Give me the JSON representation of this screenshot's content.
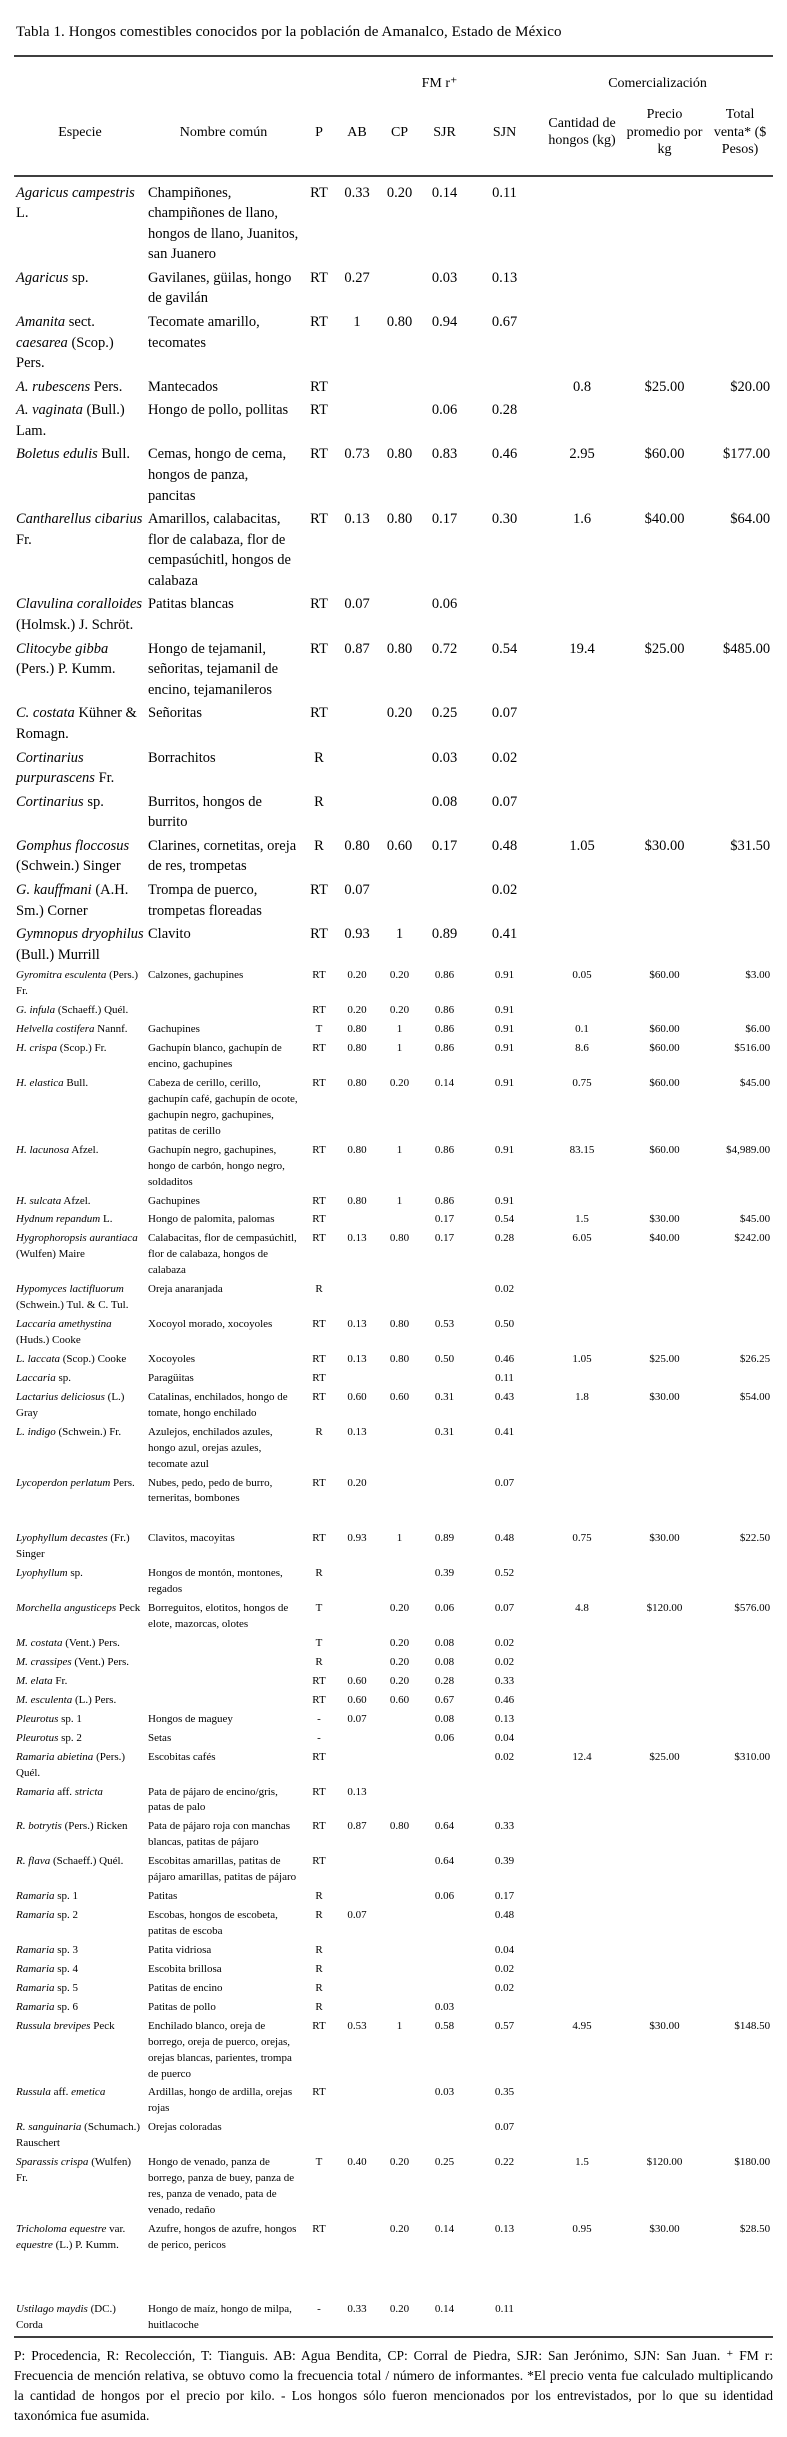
{
  "colors": {
    "text": "#000000",
    "rule": "#3f3f3f",
    "background": "#ffffff"
  },
  "title": "Tabla 1. Hongos comestibles conocidos por la población de Amanalco, Estado de México",
  "table": {
    "group_headers": {
      "fm": "FM r⁺",
      "comercializacion": "Comercialización"
    },
    "columns": [
      "Especie",
      "Nombre común",
      "P",
      "AB",
      "CP",
      "SJR",
      "SJN",
      "Cantidad de hongos (kg)",
      "Precio promedio por kg",
      "Total venta* ($ Pesos)"
    ],
    "rows": [
      {
        "section": "large",
        "especie": "«Agaricus campestris» L.",
        "nombre": "Champiñones, champiñones de llano, hongos de llano, Juanitos, san Juanero",
        "p": "RT",
        "ab": "0.33",
        "cp": "0.20",
        "sjr": "0.14",
        "sjn": "0.11",
        "cantidad": "",
        "precio": "",
        "total": ""
      },
      {
        "section": "large",
        "especie": "«Agaricus» sp.",
        "nombre": "Gavilanes, güilas, hongo de gavilán",
        "p": "RT",
        "ab": "0.27",
        "cp": "",
        "sjr": "0.03",
        "sjn": "0.13",
        "cantidad": "",
        "precio": "",
        "total": ""
      },
      {
        "section": "large",
        "especie": "«Amanita» sect. «caesarea» (Scop.) Pers.",
        "nombre": "Tecomate amarillo, tecomates",
        "p": "RT",
        "ab": "1",
        "cp": "0.80",
        "sjr": "0.94",
        "sjn": "0.67",
        "cantidad": "",
        "precio": "",
        "total": ""
      },
      {
        "section": "large",
        "especie": "«A. rubescens» Pers.",
        "nombre": "Mantecados",
        "p": "RT",
        "ab": "",
        "cp": "",
        "sjr": "",
        "sjn": "",
        "cantidad": "0.8",
        "precio": "$25.00",
        "total": "$20.00"
      },
      {
        "section": "large",
        "especie": "«A. vaginata» (Bull.) Lam.",
        "nombre": "Hongo de pollo, pollitas",
        "p": "RT",
        "ab": "",
        "cp": "",
        "sjr": "0.06",
        "sjn": "0.28",
        "cantidad": "",
        "precio": "",
        "total": ""
      },
      {
        "section": "large",
        "especie": "«Boletus edulis» Bull.",
        "nombre": "Cemas, hongo de cema, hongos de panza, pancitas",
        "p": "RT",
        "ab": "0.73",
        "cp": "0.80",
        "sjr": "0.83",
        "sjn": "0.46",
        "cantidad": "2.95",
        "precio": "$60.00",
        "total": "$177.00"
      },
      {
        "section": "large",
        "especie": "«Cantharellus cibarius» Fr.",
        "nombre": "Amarillos, calabacitas, flor de calabaza, flor de cempasúchitl, hongos de calabaza",
        "p": "RT",
        "ab": "0.13",
        "cp": "0.80",
        "sjr": "0.17",
        "sjn": "0.30",
        "cantidad": "1.6",
        "precio": "$40.00",
        "total": "$64.00"
      },
      {
        "section": "large",
        "especie": "«Clavulina coralloides» (Holmsk.) J. Schröt.",
        "nombre": "Patitas blancas",
        "p": "RT",
        "ab": "0.07",
        "cp": "",
        "sjr": "0.06",
        "sjn": "",
        "cantidad": "",
        "precio": "",
        "total": ""
      },
      {
        "section": "large",
        "especie": "«Clitocybe gibba» (Pers.) P. Kumm.",
        "nombre": "Hongo de tejamanil, señoritas, tejamanil de encino, tejamanileros",
        "p": "RT",
        "ab": "0.87",
        "cp": "0.80",
        "sjr": "0.72",
        "sjn": "0.54",
        "cantidad": "19.4",
        "precio": "$25.00",
        "total": "$485.00"
      },
      {
        "section": "large",
        "especie": "«C. costata» Kühner & Romagn.",
        "nombre": "Señoritas",
        "p": "RT",
        "ab": "",
        "cp": "0.20",
        "sjr": "0.25",
        "sjn": "0.07",
        "cantidad": "",
        "precio": "",
        "total": ""
      },
      {
        "section": "large",
        "especie": "«Cortinarius purpurascens» Fr.",
        "nombre": "Borrachitos",
        "p": "R",
        "ab": "",
        "cp": "",
        "sjr": "0.03",
        "sjn": "0.02",
        "cantidad": "",
        "precio": "",
        "total": ""
      },
      {
        "section": "large",
        "especie": "«Cortinarius» sp.",
        "nombre": "Burritos, hongos de burrito",
        "p": "R",
        "ab": "",
        "cp": "",
        "sjr": "0.08",
        "sjn": "0.07",
        "cantidad": "",
        "precio": "",
        "total": ""
      },
      {
        "section": "large",
        "especie": "«Gomphus floccosus» (Schwein.) Singer",
        "nombre": "Clarines, cornetitas, oreja de res, trompetas",
        "p": "R",
        "ab": "0.80",
        "cp": "0.60",
        "sjr": "0.17",
        "sjn": "0.48",
        "cantidad": "1.05",
        "precio": "$30.00",
        "total": "$31.50"
      },
      {
        "section": "large",
        "especie": "«G. kauffmani» (A.H. Sm.) Corner",
        "nombre": "Trompa de puerco, trompetas floreadas",
        "p": "RT",
        "ab": "0.07",
        "cp": "",
        "sjr": "",
        "sjn": "0.02",
        "cantidad": "",
        "precio": "",
        "total": ""
      },
      {
        "section": "large",
        "especie": "«Gymnopus dryophilus» (Bull.) Murrill",
        "nombre": "Clavito",
        "p": "RT",
        "ab": "0.93",
        "cp": "1",
        "sjr": "0.89",
        "sjn": "0.41",
        "cantidad": "",
        "precio": "",
        "total": ""
      },
      {
        "section": "small",
        "especie": "«Gyromitra esculenta» (Pers.) Fr.",
        "nombre": "Calzones, gachupines",
        "p": "RT",
        "ab": "0.20",
        "cp": "0.20",
        "sjr": "0.86",
        "sjn": "0.91",
        "cantidad": "0.05",
        "precio": "$60.00",
        "total": "$3.00"
      },
      {
        "section": "small",
        "especie": "«G. infula» (Schaeff.) Quél.",
        "nombre": "",
        "p": "RT",
        "ab": "0.20",
        "cp": "0.20",
        "sjr": "0.86",
        "sjn": "0.91",
        "cantidad": "",
        "precio": "",
        "total": ""
      },
      {
        "section": "small",
        "especie": "«Helvella costifera» Nannf.",
        "nombre": "Gachupines",
        "p": "T",
        "ab": "0.80",
        "cp": "1",
        "sjr": "0.86",
        "sjn": "0.91",
        "cantidad": "0.1",
        "precio": "$60.00",
        "total": "$6.00"
      },
      {
        "section": "small",
        "especie": "«H. crispa» (Scop.) Fr.",
        "nombre": "Gachupín blanco, gachupín de encino, gachupines",
        "p": "RT",
        "ab": "0.80",
        "cp": "1",
        "sjr": "0.86",
        "sjn": "0.91",
        "cantidad": "8.6",
        "precio": "$60.00",
        "total": "$516.00"
      },
      {
        "section": "small",
        "especie": "«H. elastica» Bull.",
        "nombre": "Cabeza de cerillo, cerillo, gachupín café, gachupín de ocote, gachupín negro, gachupines, patitas de cerillo",
        "p": "RT",
        "ab": "0.80",
        "cp": "0.20",
        "sjr": "0.14",
        "sjn": "0.91",
        "cantidad": "0.75",
        "precio": "$60.00",
        "total": "$45.00"
      },
      {
        "section": "small",
        "especie": "«H. lacunosa» Afzel.",
        "nombre": "Gachupín negro, gachupines, hongo de carbón, hongo negro, soldaditos",
        "p": "RT",
        "ab": "0.80",
        "cp": "1",
        "sjr": "0.86",
        "sjn": "0.91",
        "cantidad": "83.15",
        "precio": "$60.00",
        "total": "$4,989.00"
      },
      {
        "section": "small",
        "especie": "«H. sulcata» Afzel.",
        "nombre": "Gachupines",
        "p": "RT",
        "ab": "0.80",
        "cp": "1",
        "sjr": "0.86",
        "sjn": "0.91",
        "cantidad": "",
        "precio": "",
        "total": ""
      },
      {
        "section": "small",
        "especie": "«Hydnum repandum» L.",
        "nombre": "Hongo de palomita, palomas",
        "p": "RT",
        "ab": "",
        "cp": "",
        "sjr": "0.17",
        "sjn": "0.54",
        "cantidad": "1.5",
        "precio": "$30.00",
        "total": "$45.00"
      },
      {
        "section": "small",
        "especie": "«Hygrophoropsis aurantiaca» (Wulfen) Maire",
        "nombre": "Calabacitas, flor de cempasúchitl, flor de calabaza, hongos de calabaza",
        "p": "RT",
        "ab": "0.13",
        "cp": "0.80",
        "sjr": "0.17",
        "sjn": "0.28",
        "cantidad": "6.05",
        "precio": "$40.00",
        "total": "$242.00"
      },
      {
        "section": "small",
        "especie": "«Hypomyces lactifluorum» (Schwein.) Tul. & C. Tul.",
        "nombre": "Oreja anaranjada",
        "p": "R",
        "ab": "",
        "cp": "",
        "sjr": "",
        "sjn": "0.02",
        "cantidad": "",
        "precio": "",
        "total": ""
      },
      {
        "section": "small",
        "especie": "«Laccaria amethystina» (Huds.) Cooke",
        "nombre": "Xocoyol morado, xocoyoles",
        "p": "RT",
        "ab": "0.13",
        "cp": "0.80",
        "sjr": "0.53",
        "sjn": "0.50",
        "cantidad": "",
        "precio": "",
        "total": ""
      },
      {
        "section": "small",
        "especie": "«L. laccata» (Scop.) Cooke",
        "nombre": "Xocoyoles",
        "p": "RT",
        "ab": "0.13",
        "cp": "0.80",
        "sjr": "0.50",
        "sjn": "0.46",
        "cantidad": "1.05",
        "precio": "$25.00",
        "total": "$26.25"
      },
      {
        "section": "small",
        "especie": "«Laccaria» sp.",
        "nombre": "Paragüitas",
        "p": "RT",
        "ab": "",
        "cp": "",
        "sjr": "",
        "sjn": "0.11",
        "cantidad": "",
        "precio": "",
        "total": ""
      },
      {
        "section": "small",
        "especie": "«Lactarius deliciosus» (L.) Gray",
        "nombre": "Catalinas, enchilados, hongo de tomate, hongo enchilado",
        "p": "RT",
        "ab": "0.60",
        "cp": "0.60",
        "sjr": "0.31",
        "sjn": "0.43",
        "cantidad": "1.8",
        "precio": "$30.00",
        "total": "$54.00"
      },
      {
        "section": "small",
        "especie": "«L. indigo» (Schwein.) Fr.",
        "nombre": "Azulejos, enchilados azules, hongo azul, orejas azules, tecomate azul",
        "p": "R",
        "ab": "0.13",
        "cp": "",
        "sjr": "0.31",
        "sjn": "0.41",
        "cantidad": "",
        "precio": "",
        "total": ""
      },
      {
        "section": "small",
        "especie": "«Lycoperdon perlatum» Pers.",
        "nombre": "Nubes, pedo, pedo de burro, terneritas, bombones",
        "p": "RT",
        "ab": "0.20",
        "cp": "",
        "sjr": "",
        "sjn": "0.07",
        "cantidad": "",
        "precio": "",
        "total": ""
      },
      {
        "section": "small",
        "gap": "sm",
        "especie": "«Lyophyllum decastes» (Fr.) Singer",
        "nombre": "Clavitos, macoyitas",
        "p": "RT",
        "ab": "0.93",
        "cp": "1",
        "sjr": "0.89",
        "sjn": "0.48",
        "cantidad": "0.75",
        "precio": "$30.00",
        "total": "$22.50"
      },
      {
        "section": "small",
        "especie": "«Lyophyllum» sp.",
        "nombre": "Hongos de montón, montones, regados",
        "p": "R",
        "ab": "",
        "cp": "",
        "sjr": "0.39",
        "sjn": "0.52",
        "cantidad": "",
        "precio": "",
        "total": ""
      },
      {
        "section": "small",
        "especie": "«Morchella angusticeps» Peck",
        "nombre": "Borreguitos, elotitos, hongos de elote, mazorcas, olotes",
        "p": "T",
        "ab": "",
        "cp": "0.20",
        "sjr": "0.06",
        "sjn": "0.07",
        "cantidad": "4.8",
        "precio": "$120.00",
        "total": "$576.00"
      },
      {
        "section": "small",
        "especie": "«M. costata» (Vent.) Pers.",
        "nombre": "",
        "p": "T",
        "ab": "",
        "cp": "0.20",
        "sjr": "0.08",
        "sjn": "0.02",
        "cantidad": "",
        "precio": "",
        "total": ""
      },
      {
        "section": "small",
        "especie": "«M. crassipes» (Vent.) Pers.",
        "nombre": "",
        "p": "R",
        "ab": "",
        "cp": "0.20",
        "sjr": "0.08",
        "sjn": "0.02",
        "cantidad": "",
        "precio": "",
        "total": ""
      },
      {
        "section": "small",
        "especie": "«M. elata» Fr.",
        "nombre": "",
        "p": "RT",
        "ab": "0.60",
        "cp": "0.20",
        "sjr": "0.28",
        "sjn": "0.33",
        "cantidad": "",
        "precio": "",
        "total": ""
      },
      {
        "section": "small",
        "especie": "«M. esculenta» (L.) Pers.",
        "nombre": "",
        "p": "RT",
        "ab": "0.60",
        "cp": "0.60",
        "sjr": "0.67",
        "sjn": "0.46",
        "cantidad": "",
        "precio": "",
        "total": ""
      },
      {
        "section": "small",
        "especie": "«Pleurotus» sp. 1",
        "nombre": "Hongos de maguey",
        "p": "-",
        "ab": "0.07",
        "cp": "",
        "sjr": "0.08",
        "sjn": "0.13",
        "cantidad": "",
        "precio": "",
        "total": ""
      },
      {
        "section": "small",
        "especie": "«Pleurotus» sp. 2",
        "nombre": "Setas",
        "p": "-",
        "ab": "",
        "cp": "",
        "sjr": "0.06",
        "sjn": "0.04",
        "cantidad": "",
        "precio": "",
        "total": ""
      },
      {
        "section": "small",
        "especie": "«Ramaria abietina» (Pers.) Quél.",
        "nombre": "Escobitas cafés",
        "p": "RT",
        "ab": "",
        "cp": "",
        "sjr": "",
        "sjn": "0.02",
        "cantidad": "12.4",
        "precio": "$25.00",
        "total": "$310.00"
      },
      {
        "section": "small",
        "especie": "«Ramaria» aff. «stricta»",
        "nombre": "Pata de pájaro de encino/gris, patas de palo",
        "p": "RT",
        "ab": "0.13",
        "cp": "",
        "sjr": "",
        "sjn": "",
        "cantidad": "",
        "precio": "",
        "total": ""
      },
      {
        "section": "small",
        "especie": "«R. botrytis» (Pers.) Ricken",
        "nombre": "Pata de pájaro roja con manchas blancas, patitas de pájaro",
        "p": "RT",
        "ab": "0.87",
        "cp": "0.80",
        "sjr": "0.64",
        "sjn": "0.33",
        "cantidad": "",
        "precio": "",
        "total": ""
      },
      {
        "section": "small",
        "especie": "«R. flava» (Schaeff.) Quél.",
        "nombre": "Escobitas amarillas, patitas de pájaro amarillas, patitas de pájaro",
        "p": "RT",
        "ab": "",
        "cp": "",
        "sjr": "0.64",
        "sjn": "0.39",
        "cantidad": "",
        "precio": "",
        "total": ""
      },
      {
        "section": "small",
        "especie": "«Ramaria» sp. 1",
        "nombre": "Patitas",
        "p": "R",
        "ab": "",
        "cp": "",
        "sjr": "0.06",
        "sjn": "0.17",
        "cantidad": "",
        "precio": "",
        "total": ""
      },
      {
        "section": "small",
        "especie": "«Ramaria» sp. 2",
        "nombre": "Escobas, hongos de escobeta, patitas de escoba",
        "p": "R",
        "ab": "0.07",
        "cp": "",
        "sjr": "",
        "sjn": "0.48",
        "cantidad": "",
        "precio": "",
        "total": ""
      },
      {
        "section": "small",
        "especie": "«Ramaria» sp. 3",
        "nombre": "Patita vidriosa",
        "p": "R",
        "ab": "",
        "cp": "",
        "sjr": "",
        "sjn": "0.04",
        "cantidad": "",
        "precio": "",
        "total": ""
      },
      {
        "section": "small",
        "especie": "«Ramaria» sp. 4",
        "nombre": "Escobita brillosa",
        "p": "R",
        "ab": "",
        "cp": "",
        "sjr": "",
        "sjn": "0.02",
        "cantidad": "",
        "precio": "",
        "total": ""
      },
      {
        "section": "small",
        "especie": "«Ramaria» sp. 5",
        "nombre": "Patitas de encino",
        "p": "R",
        "ab": "",
        "cp": "",
        "sjr": "",
        "sjn": "0.02",
        "cantidad": "",
        "precio": "",
        "total": ""
      },
      {
        "section": "small",
        "especie": "«Ramaria» sp. 6",
        "nombre": "Patitas de pollo",
        "p": "R",
        "ab": "",
        "cp": "",
        "sjr": "0.03",
        "sjn": "",
        "cantidad": "",
        "precio": "",
        "total": ""
      },
      {
        "section": "small",
        "especie": "«Russula brevipes» Peck",
        "nombre": "Enchilado blanco, oreja de borrego, oreja de puerco, orejas, orejas blancas, parientes, trompa de puerco",
        "p": "RT",
        "ab": "0.53",
        "cp": "1",
        "sjr": "0.58",
        "sjn": "0.57",
        "cantidad": "4.95",
        "precio": "$30.00",
        "total": "$148.50"
      },
      {
        "section": "small",
        "especie": "«Russula» aff. «emetica»",
        "nombre": "Ardillas, hongo de ardilla, orejas rojas",
        "p": "RT",
        "ab": "",
        "cp": "",
        "sjr": "0.03",
        "sjn": "0.35",
        "cantidad": "",
        "precio": "",
        "total": ""
      },
      {
        "section": "small",
        "especie": "«R. sanguinaria» (Schumach.) Rauschert",
        "nombre": "Orejas coloradas",
        "p": "",
        "ab": "",
        "cp": "",
        "sjr": "",
        "sjn": "0.07",
        "cantidad": "",
        "precio": "",
        "total": ""
      },
      {
        "section": "small",
        "especie": "«Sparassis crispa» (Wulfen) Fr.",
        "nombre": "Hongo de venado, panza de borrego, panza de buey, panza de res, panza de venado, pata de venado, redaño",
        "p": "T",
        "ab": "0.40",
        "cp": "0.20",
        "sjr": "0.25",
        "sjn": "0.22",
        "cantidad": "1.5",
        "precio": "$120.00",
        "total": "$180.00"
      },
      {
        "section": "small",
        "especie": "«Tricholoma equestre» var. «equestre» (L.) P. Kumm.",
        "nombre": "Azufre, hongos de azufre, hongos de perico, pericos",
        "p": "RT",
        "ab": "",
        "cp": "0.20",
        "sjr": "0.14",
        "sjn": "0.13",
        "cantidad": "0.95",
        "precio": "$30.00",
        "total": "$28.50"
      },
      {
        "section": "small",
        "gap": "lg",
        "especie": "«Ustilago maydis» (DC.) Corda",
        "nombre": "Hongo de maíz, hongo de milpa, huitlacoche",
        "p": "-",
        "ab": "0.33",
        "cp": "0.20",
        "sjr": "0.14",
        "sjn": "0.11",
        "cantidad": "",
        "precio": "",
        "total": ""
      }
    ]
  },
  "footnote": "P: Procedencia, R: Recolección, T: Tianguis. AB: Agua Bendita, CP: Corral de Piedra, SJR: San Jerónimo, SJN: San Juan. ⁺ FM r: Frecuencia de mención relativa, se obtuvo como la frecuencia total / número de informantes. *El precio venta fue calculado multiplicando la cantidad de hongos por el precio por kilo. - Los hongos sólo fueron mencionados por los entrevistados, por lo que su identidad taxonómica fue asumida."
}
